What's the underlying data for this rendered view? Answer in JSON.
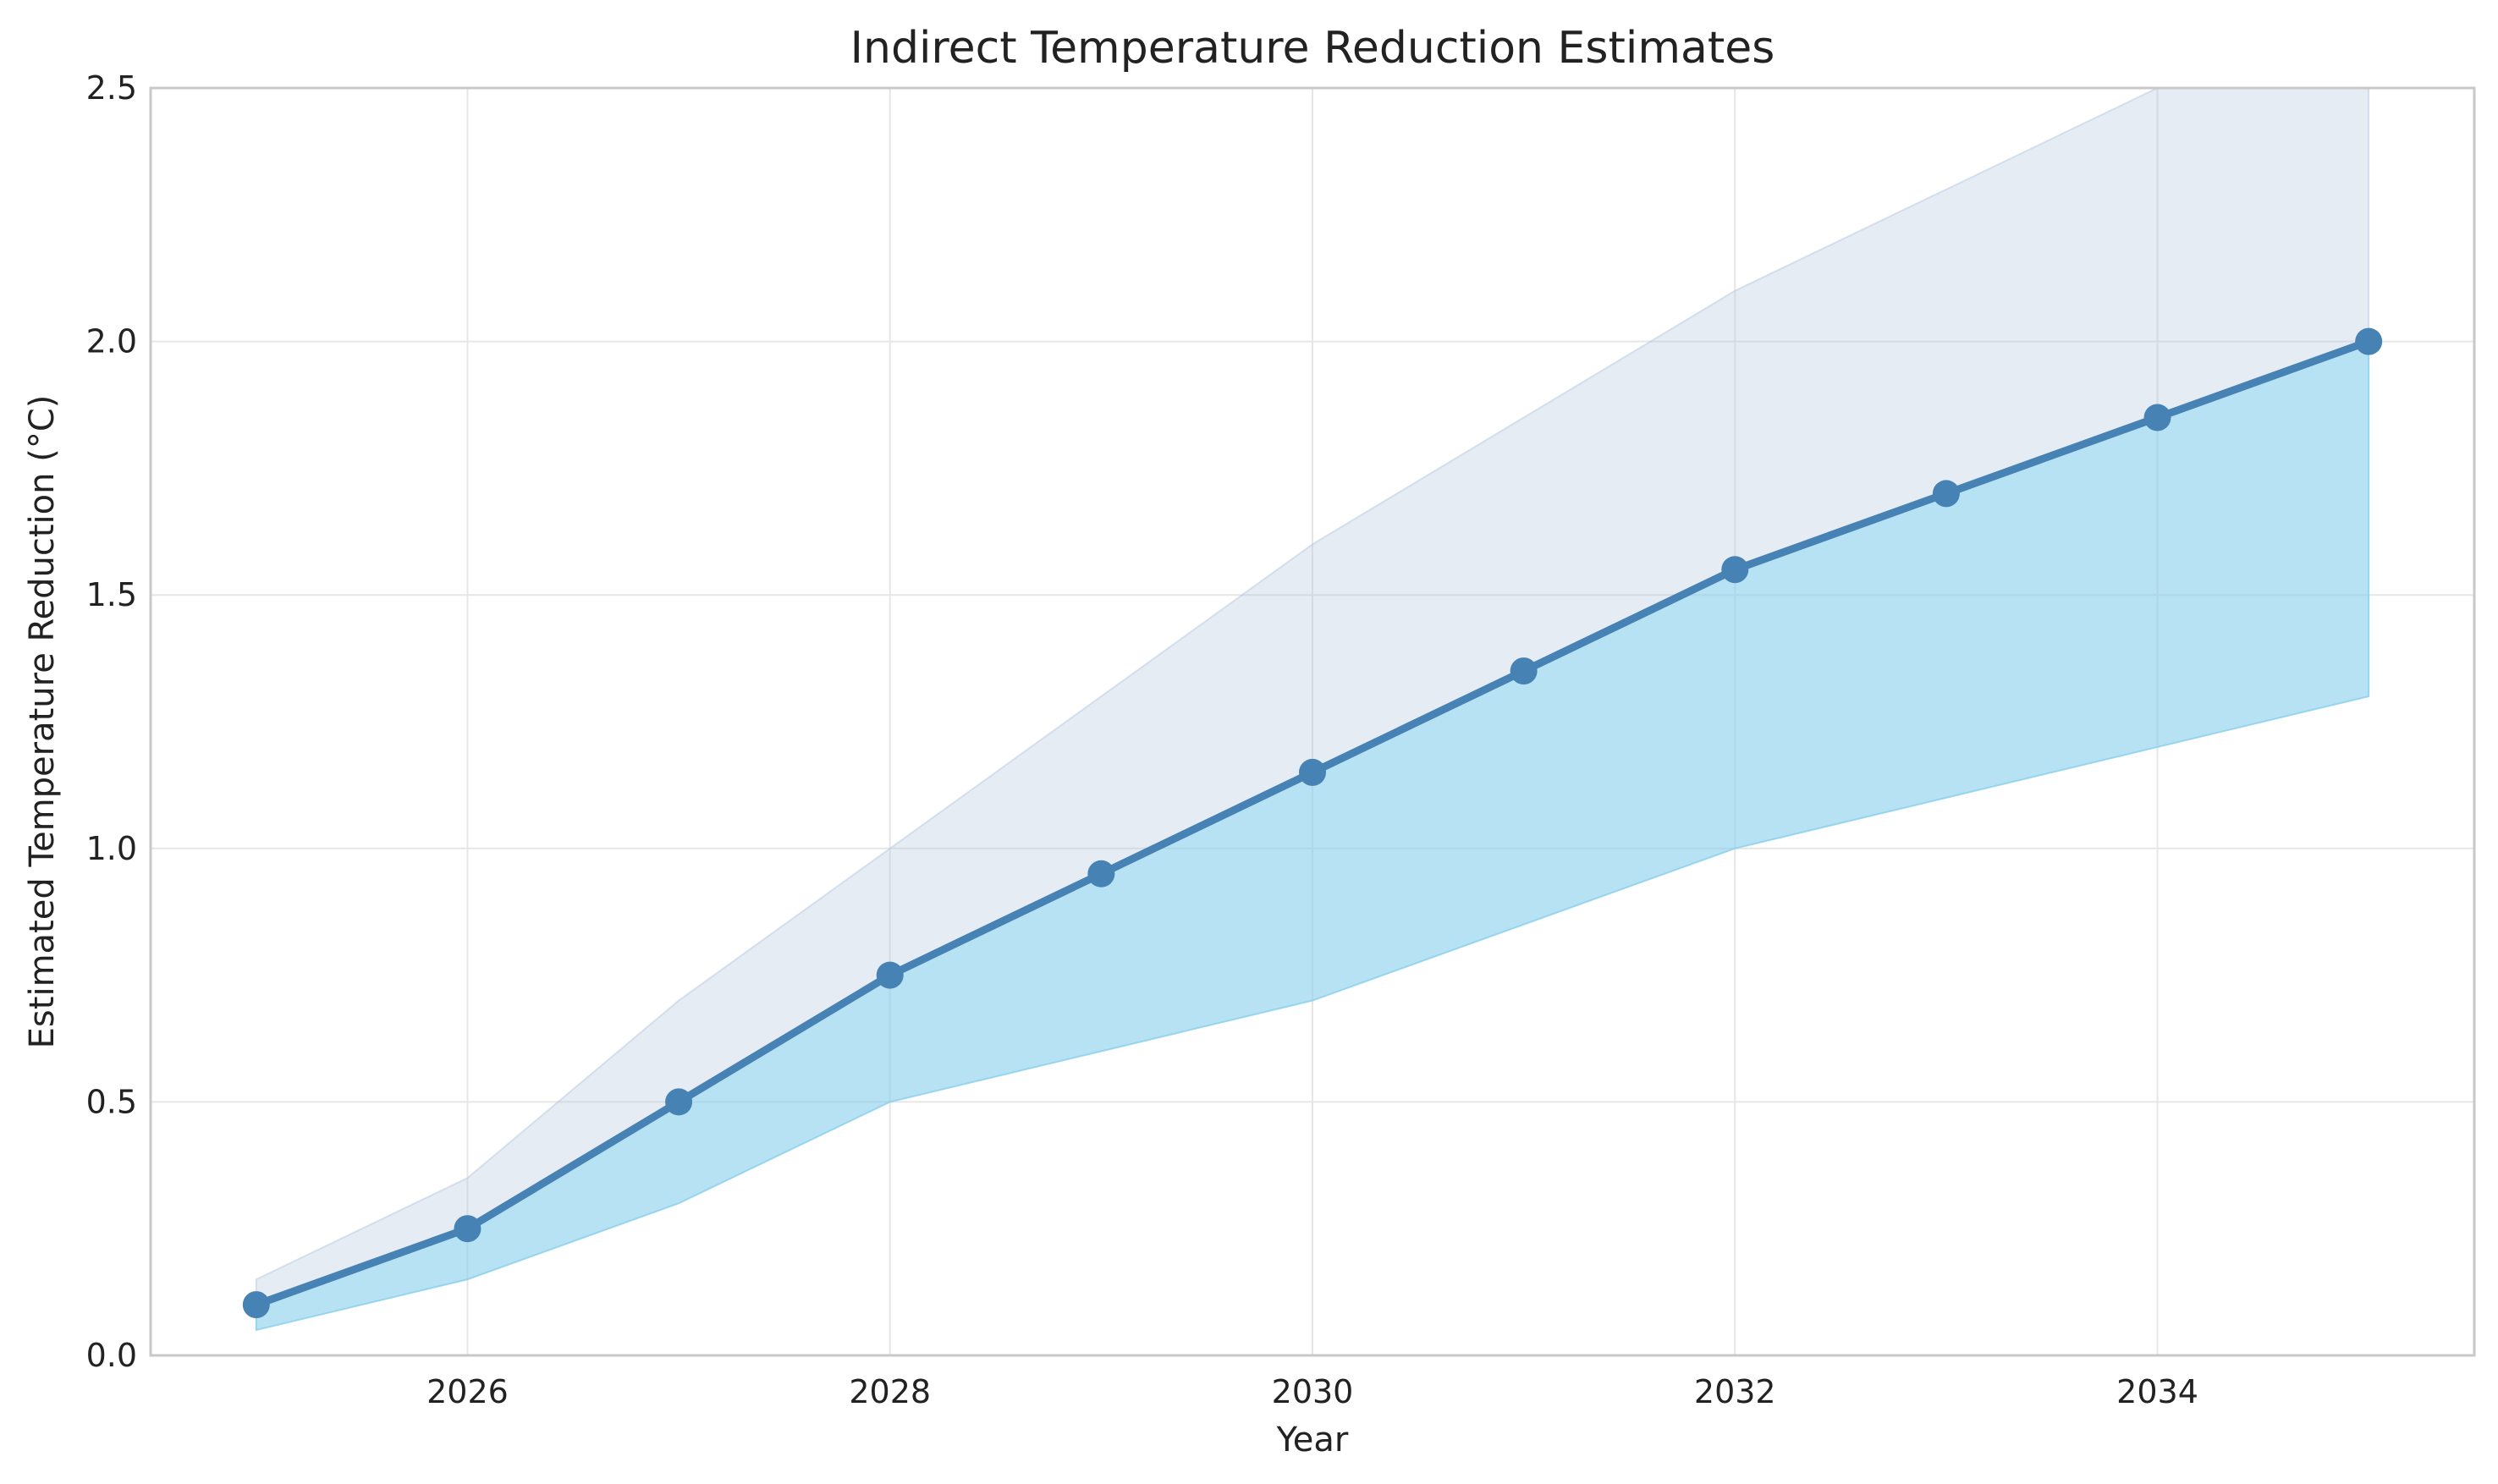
{
  "chart_data": {
    "type": "line",
    "title": "Indirect Temperature Reduction Estimates",
    "xlabel": "Year",
    "ylabel": "Estimated Temperature Reduction (°C)",
    "xlim": [
      2024.5,
      2035.5
    ],
    "ylim": [
      0,
      2.5
    ],
    "xticks": [
      2026,
      2028,
      2030,
      2032,
      2034
    ],
    "yticks": [
      0.0,
      0.5,
      1.0,
      1.5,
      2.0,
      2.5
    ],
    "grid": true,
    "x": [
      2025,
      2026,
      2027,
      2028,
      2029,
      2030,
      2031,
      2032,
      2033,
      2034,
      2035
    ],
    "series": [
      {
        "values": [
          0.1,
          0.25,
          0.5,
          0.75,
          0.95,
          1.15,
          1.35,
          1.55,
          1.7,
          1.85,
          2.0
        ],
        "lower": [
          0.05,
          0.15,
          0.3,
          0.5,
          0.6,
          0.7,
          0.85,
          1.0,
          1.1,
          1.2,
          1.3
        ],
        "upper": [
          0.15,
          0.35,
          0.7,
          1.0,
          1.3,
          1.6,
          1.85,
          2.1,
          2.3,
          2.5,
          2.7
        ]
      }
    ],
    "colors": {
      "line": "#4682b4",
      "lower_band": "#87ceeb",
      "upper_band": "#b0c4de"
    }
  }
}
